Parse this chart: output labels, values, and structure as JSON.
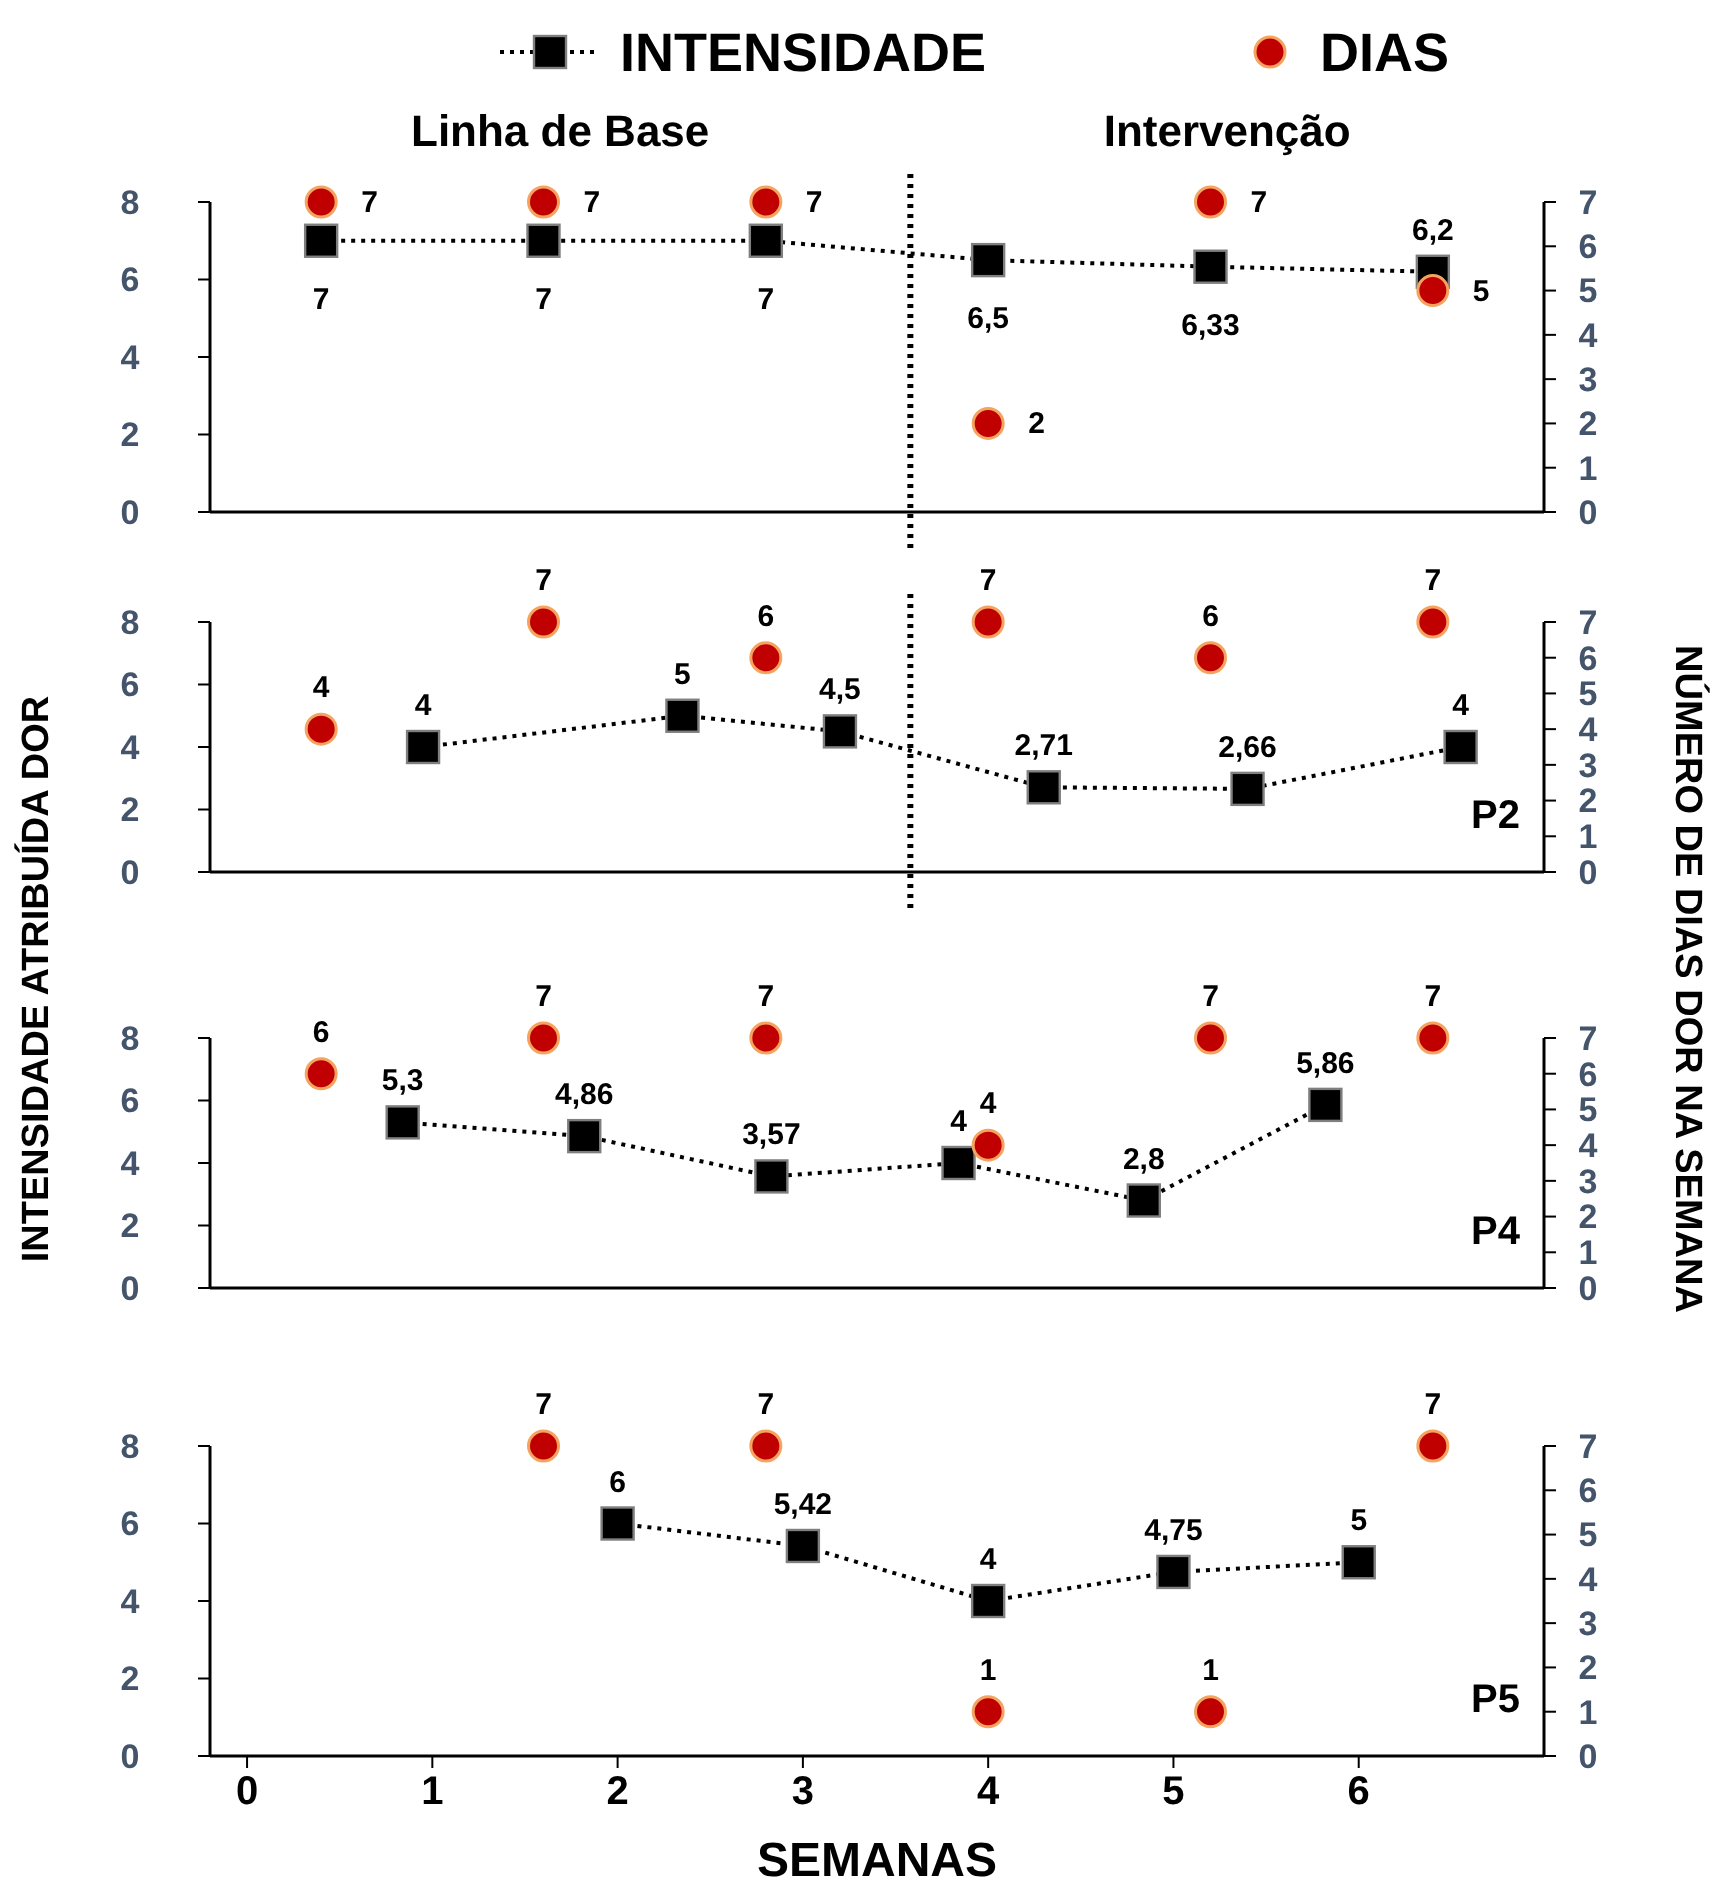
{
  "chart_data": [
    {
      "type": "line",
      "xlim": [
        -0.2,
        7
      ],
      "ylim": [
        0,
        8
      ],
      "yticks": [
        0,
        2,
        4,
        6,
        8
      ],
      "y2lim": [
        0,
        7
      ],
      "y2ticks": [
        0,
        1,
        2,
        3,
        4,
        5,
        6,
        7
      ],
      "tick_labels": "y",
      "legend": "top",
      "annotations": [
        "Linha de Base",
        "Intervenção"
      ],
      "ref_lines": [
        {
          "axis": "x",
          "value": 3.58,
          "line_style": "dotted",
          "color": "#000000"
        }
      ],
      "series": [
        {
          "name": "INTENSIDADE",
          "marker": "square",
          "line_style": "dotted",
          "color": "#000000",
          "x": [
            0.4,
            1.6,
            2.8,
            4.0,
            5.2,
            6.4
          ],
          "values": [
            7,
            7,
            7,
            6.5,
            6.33,
            6.2
          ],
          "value_labels": [
            "7",
            "7",
            "7",
            "6,5",
            "6,33",
            "6,2"
          ]
        },
        {
          "name": "DIAS",
          "type": "scatter",
          "marker": "circle",
          "axis": "y2",
          "color": "#c00000",
          "x": [
            0.4,
            1.6,
            2.8,
            4.0,
            5.2,
            6.4
          ],
          "values": [
            7,
            7,
            7,
            2,
            7,
            5
          ],
          "value_labels": [
            "7",
            "7",
            "7",
            "2",
            "7",
            "5"
          ]
        }
      ]
    },
    {
      "type": "line",
      "xlim": [
        -0.2,
        7
      ],
      "ylim": [
        0,
        8
      ],
      "yticks": [
        0,
        2,
        4,
        6,
        8
      ],
      "y2lim": [
        0,
        7
      ],
      "y2ticks": [
        0,
        1,
        2,
        3,
        4,
        5,
        6,
        7
      ],
      "tick_labels": "y",
      "ylabel": "INTENSIDADE ATRIBUÍDA DOR",
      "y2label": "NÚMERO DE DIAS DOR NA SEMANA",
      "annotations": [
        "P2"
      ],
      "ref_lines": [
        {
          "axis": "x",
          "value": 3.58,
          "line_style": "dotted",
          "color": "#000000"
        }
      ],
      "series": [
        {
          "marker": "square",
          "line_style": "dotted",
          "color": "#000000",
          "x": [
            0.95,
            2.35,
            3.2,
            4.3,
            5.4,
            6.55
          ],
          "values": [
            4,
            5,
            4.5,
            2.71,
            2.66,
            4
          ],
          "value_labels": [
            "4",
            "5",
            "4,5",
            "2,71",
            "2,66",
            "4"
          ]
        },
        {
          "type": "scatter",
          "marker": "circle",
          "axis": "y2",
          "color": "#c00000",
          "x": [
            0.4,
            1.6,
            2.8,
            4.0,
            5.2,
            6.4
          ],
          "values": [
            4,
            7,
            6,
            7,
            6,
            7
          ],
          "value_labels": [
            "4",
            "7",
            "6",
            "7",
            "6",
            "7"
          ]
        }
      ]
    },
    {
      "type": "line",
      "xlim": [
        -0.2,
        7
      ],
      "ylim": [
        0,
        8
      ],
      "yticks": [
        0,
        2,
        4,
        6,
        8
      ],
      "y2lim": [
        0,
        7
      ],
      "y2ticks": [
        0,
        1,
        2,
        3,
        4,
        5,
        6,
        7
      ],
      "tick_labels": "y",
      "annotations": [
        "P4"
      ],
      "series": [
        {
          "marker": "square",
          "line_style": "dotted",
          "color": "#000000",
          "x": [
            0.84,
            1.82,
            2.83,
            3.84,
            4.84,
            5.82
          ],
          "values": [
            5.3,
            4.86,
            3.57,
            4,
            2.8,
            5.86
          ],
          "value_labels": [
            "5,3",
            "4,86",
            "3,57",
            "4",
            "2,8",
            "5,86"
          ]
        },
        {
          "type": "scatter",
          "marker": "circle",
          "axis": "y2",
          "color": "#c00000",
          "x": [
            0.4,
            1.6,
            2.8,
            4.0,
            5.2,
            6.4
          ],
          "values": [
            6,
            7,
            7,
            4,
            7,
            7
          ],
          "value_labels": [
            "6",
            "7",
            "7",
            "4",
            "7",
            "7"
          ]
        }
      ]
    },
    {
      "type": "line",
      "xlim": [
        -0.2,
        7
      ],
      "xticks": [
        0,
        1,
        2,
        3,
        4,
        5,
        6
      ],
      "ylim": [
        0,
        8
      ],
      "yticks": [
        0,
        2,
        4,
        6,
        8
      ],
      "y2lim": [
        0,
        7
      ],
      "y2ticks": [
        0,
        1,
        2,
        3,
        4,
        5,
        6,
        7
      ],
      "xlabel": "SEMANAS",
      "annotations": [
        "P5"
      ],
      "series": [
        {
          "marker": "square",
          "line_style": "dotted",
          "color": "#000000",
          "x": [
            2,
            3,
            4,
            5,
            6
          ],
          "values": [
            6,
            5.42,
            4,
            4.75,
            5
          ],
          "value_labels": [
            "6",
            "5,42",
            "4",
            "4,75",
            "5"
          ]
        },
        {
          "type": "scatter",
          "marker": "circle",
          "axis": "y2",
          "color": "#c00000",
          "x": [
            1.6,
            2.8,
            4.0,
            5.2,
            6.4
          ],
          "values": [
            7,
            7,
            1,
            1,
            7
          ],
          "value_labels": [
            "7",
            "7",
            "1",
            "1",
            "7"
          ]
        }
      ]
    }
  ]
}
